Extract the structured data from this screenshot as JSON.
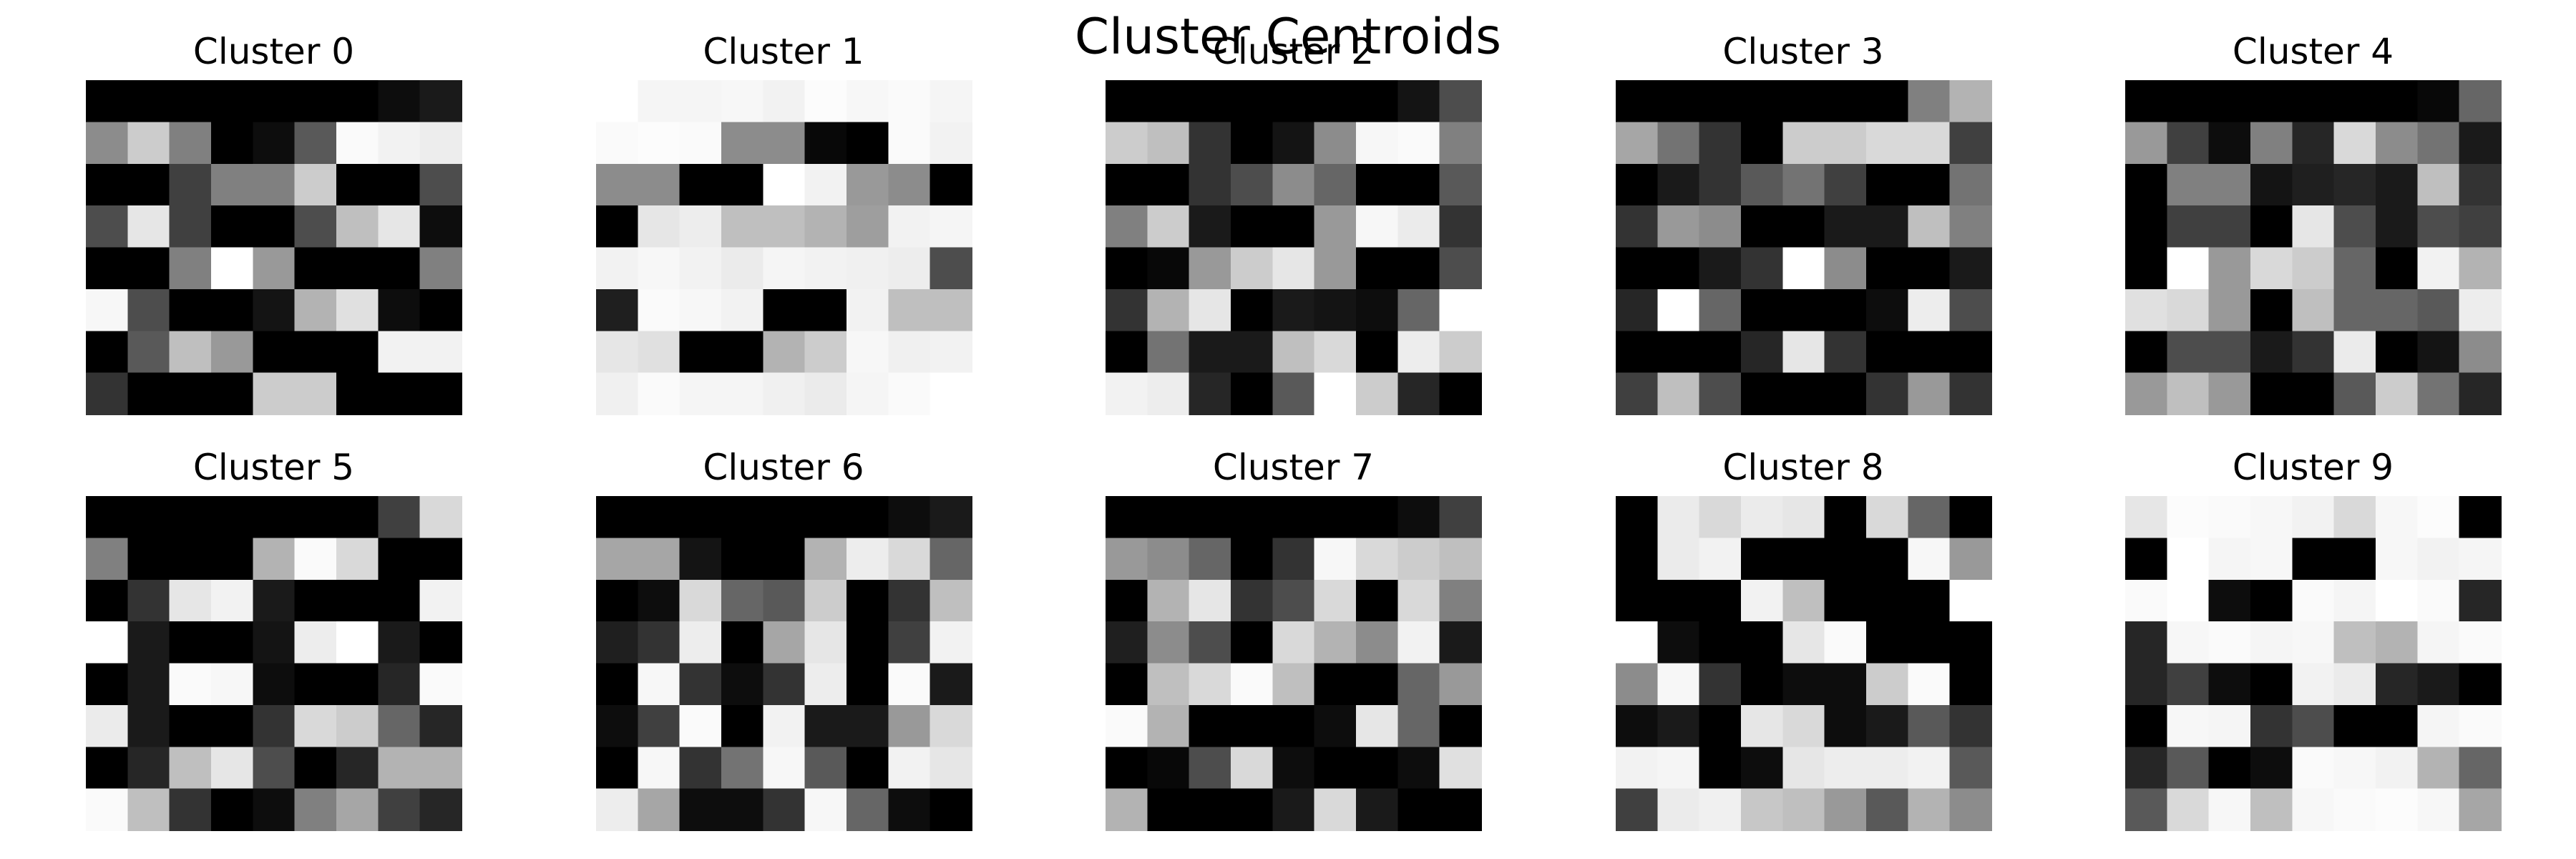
{
  "chart_data": {
    "type": "heatmap",
    "title": "Cluster Centroids",
    "colormap": "gray",
    "value_range": [
      0,
      1
    ],
    "axes_visible": false,
    "grid_rows": 8,
    "grid_cols": 9,
    "panels": [
      {
        "title": "Cluster 0",
        "values": [
          [
            0.0,
            0.0,
            0.0,
            0.0,
            0.0,
            0.0,
            0.0,
            0.05,
            0.1
          ],
          [
            0.55,
            0.8,
            0.5,
            0.0,
            0.05,
            0.35,
            0.98,
            0.95,
            0.93
          ],
          [
            0.0,
            0.0,
            0.25,
            0.5,
            0.5,
            0.8,
            0.0,
            0.0,
            0.3
          ],
          [
            0.3,
            0.9,
            0.25,
            0.0,
            0.0,
            0.3,
            0.75,
            0.9,
            0.05
          ],
          [
            0.0,
            0.0,
            0.5,
            1.0,
            0.6,
            0.0,
            0.0,
            0.0,
            0.5
          ],
          [
            0.97,
            0.3,
            0.0,
            0.0,
            0.08,
            0.7,
            0.88,
            0.05,
            0.0
          ],
          [
            0.0,
            0.35,
            0.75,
            0.6,
            0.0,
            0.0,
            0.0,
            0.95,
            0.95
          ],
          [
            0.2,
            0.0,
            0.0,
            0.0,
            0.8,
            0.8,
            0.0,
            0.0,
            0.0
          ]
        ]
      },
      {
        "title": "Cluster 1",
        "values": [
          [
            1.0,
            0.96,
            0.96,
            0.97,
            0.95,
            0.99,
            0.97,
            0.98,
            0.96
          ],
          [
            0.98,
            0.99,
            0.98,
            0.55,
            0.55,
            0.03,
            0.0,
            0.98,
            0.95
          ],
          [
            0.55,
            0.55,
            0.0,
            0.0,
            1.0,
            0.95,
            0.6,
            0.55,
            0.0
          ],
          [
            0.0,
            0.9,
            0.93,
            0.75,
            0.75,
            0.7,
            0.62,
            0.95,
            0.96
          ],
          [
            0.95,
            0.97,
            0.95,
            0.92,
            0.96,
            0.95,
            0.94,
            0.93,
            0.3
          ],
          [
            0.12,
            0.98,
            0.97,
            0.95,
            0.0,
            0.0,
            0.95,
            0.75,
            0.75
          ],
          [
            0.9,
            0.88,
            0.0,
            0.0,
            0.7,
            0.8,
            0.97,
            0.94,
            0.95
          ],
          [
            0.94,
            0.98,
            0.96,
            0.96,
            0.94,
            0.92,
            0.96,
            0.98,
            1.0
          ]
        ]
      },
      {
        "title": "Cluster 2",
        "values": [
          [
            0.0,
            0.0,
            0.0,
            0.0,
            0.0,
            0.0,
            0.0,
            0.08,
            0.3
          ],
          [
            0.8,
            0.75,
            0.2,
            0.0,
            0.08,
            0.55,
            0.97,
            0.98,
            0.5
          ],
          [
            0.0,
            0.0,
            0.2,
            0.3,
            0.55,
            0.4,
            0.0,
            0.0,
            0.35
          ],
          [
            0.5,
            0.8,
            0.1,
            0.0,
            0.0,
            0.6,
            0.97,
            0.92,
            0.2
          ],
          [
            0.0,
            0.03,
            0.6,
            0.8,
            0.9,
            0.6,
            0.0,
            0.0,
            0.3
          ],
          [
            0.2,
            0.7,
            0.9,
            0.0,
            0.1,
            0.08,
            0.05,
            0.4,
            1.0
          ],
          [
            0.0,
            0.45,
            0.1,
            0.1,
            0.75,
            0.85,
            0.0,
            0.93,
            0.8
          ],
          [
            0.95,
            0.93,
            0.15,
            0.0,
            0.35,
            1.0,
            0.8,
            0.15,
            0.0
          ]
        ]
      },
      {
        "title": "Cluster 3",
        "values": [
          [
            0.0,
            0.0,
            0.0,
            0.0,
            0.0,
            0.0,
            0.0,
            0.5,
            0.7
          ],
          [
            0.65,
            0.45,
            0.2,
            0.0,
            0.8,
            0.8,
            0.85,
            0.85,
            0.25
          ],
          [
            0.0,
            0.1,
            0.2,
            0.35,
            0.45,
            0.25,
            0.0,
            0.0,
            0.45
          ],
          [
            0.2,
            0.6,
            0.55,
            0.0,
            0.0,
            0.1,
            0.1,
            0.75,
            0.5
          ],
          [
            0.0,
            0.0,
            0.1,
            0.2,
            1.0,
            0.55,
            0.0,
            0.0,
            0.1
          ],
          [
            0.15,
            1.0,
            0.4,
            0.0,
            0.0,
            0.0,
            0.05,
            0.93,
            0.3
          ],
          [
            0.0,
            0.0,
            0.0,
            0.15,
            0.9,
            0.2,
            0.0,
            0.0,
            0.0
          ],
          [
            0.25,
            0.75,
            0.3,
            0.0,
            0.0,
            0.0,
            0.2,
            0.6,
            0.2
          ]
        ]
      },
      {
        "title": "Cluster 4",
        "values": [
          [
            0.0,
            0.0,
            0.0,
            0.0,
            0.0,
            0.0,
            0.0,
            0.03,
            0.4
          ],
          [
            0.6,
            0.25,
            0.05,
            0.5,
            0.15,
            0.85,
            0.55,
            0.45,
            0.1
          ],
          [
            0.0,
            0.5,
            0.5,
            0.08,
            0.12,
            0.15,
            0.1,
            0.75,
            0.2
          ],
          [
            0.0,
            0.25,
            0.25,
            0.0,
            0.9,
            0.3,
            0.1,
            0.3,
            0.25
          ],
          [
            0.0,
            1.0,
            0.6,
            0.85,
            0.8,
            0.4,
            0.0,
            0.95,
            0.7
          ],
          [
            0.88,
            0.85,
            0.6,
            0.0,
            0.75,
            0.4,
            0.4,
            0.35,
            0.93
          ],
          [
            0.0,
            0.3,
            0.3,
            0.1,
            0.2,
            0.92,
            0.0,
            0.08,
            0.55
          ],
          [
            0.6,
            0.75,
            0.6,
            0.0,
            0.0,
            0.35,
            0.8,
            0.45,
            0.15
          ]
        ]
      },
      {
        "title": "Cluster 5",
        "values": [
          [
            0.0,
            0.0,
            0.0,
            0.0,
            0.0,
            0.0,
            0.0,
            0.25,
            0.85
          ],
          [
            0.5,
            0.0,
            0.0,
            0.0,
            0.7,
            0.98,
            0.85,
            0.0,
            0.0
          ],
          [
            0.0,
            0.2,
            0.9,
            0.95,
            0.1,
            0.0,
            0.0,
            0.0,
            0.95
          ],
          [
            1.0,
            0.1,
            0.0,
            0.0,
            0.08,
            0.93,
            1.0,
            0.1,
            0.0
          ],
          [
            0.0,
            0.1,
            0.98,
            0.97,
            0.05,
            0.0,
            0.0,
            0.15,
            0.98
          ],
          [
            0.92,
            0.1,
            0.0,
            0.0,
            0.2,
            0.85,
            0.8,
            0.4,
            0.15
          ],
          [
            0.0,
            0.15,
            0.75,
            0.9,
            0.3,
            0.0,
            0.15,
            0.7,
            0.7
          ],
          [
            0.98,
            0.75,
            0.2,
            0.0,
            0.05,
            0.5,
            0.65,
            0.25,
            0.15
          ]
        ]
      },
      {
        "title": "Cluster 6",
        "values": [
          [
            0.0,
            0.0,
            0.0,
            0.0,
            0.0,
            0.0,
            0.0,
            0.05,
            0.1
          ],
          [
            0.65,
            0.65,
            0.08,
            0.0,
            0.0,
            0.7,
            0.93,
            0.85,
            0.4
          ],
          [
            0.0,
            0.05,
            0.85,
            0.4,
            0.35,
            0.8,
            0.0,
            0.2,
            0.75
          ],
          [
            0.12,
            0.2,
            0.93,
            0.0,
            0.65,
            0.9,
            0.0,
            0.25,
            0.95
          ],
          [
            0.0,
            0.97,
            0.2,
            0.05,
            0.2,
            0.93,
            0.0,
            0.98,
            0.1
          ],
          [
            0.05,
            0.25,
            0.98,
            0.0,
            0.95,
            0.1,
            0.1,
            0.6,
            0.85
          ],
          [
            0.0,
            0.97,
            0.2,
            0.45,
            0.97,
            0.35,
            0.0,
            0.95,
            0.9
          ],
          [
            0.93,
            0.65,
            0.05,
            0.05,
            0.2,
            0.97,
            0.4,
            0.05,
            0.0
          ]
        ]
      },
      {
        "title": "Cluster 7",
        "values": [
          [
            0.0,
            0.0,
            0.0,
            0.0,
            0.0,
            0.0,
            0.0,
            0.05,
            0.25
          ],
          [
            0.6,
            0.55,
            0.4,
            0.0,
            0.2,
            0.97,
            0.85,
            0.8,
            0.75
          ],
          [
            0.0,
            0.7,
            0.9,
            0.2,
            0.3,
            0.85,
            0.0,
            0.85,
            0.5
          ],
          [
            0.12,
            0.55,
            0.3,
            0.0,
            0.85,
            0.7,
            0.55,
            0.95,
            0.1
          ],
          [
            0.0,
            0.75,
            0.85,
            0.98,
            0.75,
            0.0,
            0.0,
            0.4,
            0.6
          ],
          [
            0.98,
            0.7,
            0.0,
            0.0,
            0.0,
            0.05,
            0.9,
            0.4,
            0.0
          ],
          [
            0.0,
            0.03,
            0.3,
            0.85,
            0.05,
            0.0,
            0.0,
            0.05,
            0.88
          ],
          [
            0.7,
            0.0,
            0.0,
            0.0,
            0.1,
            0.85,
            0.1,
            0.0,
            0.0
          ]
        ]
      },
      {
        "title": "Cluster 8",
        "values": [
          [
            0.0,
            0.92,
            0.85,
            0.92,
            0.9,
            0.0,
            0.85,
            0.4,
            0.0
          ],
          [
            0.0,
            0.92,
            0.95,
            0.0,
            0.0,
            0.0,
            0.0,
            0.97,
            0.6
          ],
          [
            0.0,
            0.0,
            0.0,
            0.95,
            0.75,
            0.0,
            0.0,
            0.0,
            1.0
          ],
          [
            1.0,
            0.05,
            0.0,
            0.0,
            0.9,
            0.98,
            0.0,
            0.0,
            0.0
          ],
          [
            0.55,
            0.97,
            0.2,
            0.0,
            0.05,
            0.05,
            0.8,
            0.98,
            0.0
          ],
          [
            0.05,
            0.1,
            0.0,
            0.9,
            0.85,
            0.05,
            0.1,
            0.35,
            0.2
          ],
          [
            0.95,
            0.96,
            0.0,
            0.05,
            0.9,
            0.93,
            0.93,
            0.95,
            0.35
          ],
          [
            0.25,
            0.92,
            0.94,
            0.78,
            0.75,
            0.6,
            0.35,
            0.7,
            0.55
          ]
        ]
      },
      {
        "title": "Cluster 9",
        "values": [
          [
            0.9,
            0.99,
            0.98,
            0.97,
            0.95,
            0.85,
            0.97,
            0.99,
            0.0
          ],
          [
            0.0,
            1.0,
            0.96,
            0.97,
            0.0,
            0.0,
            0.97,
            0.95,
            0.96
          ],
          [
            0.98,
            1.0,
            0.05,
            0.0,
            0.98,
            0.96,
            1.0,
            0.98,
            0.15
          ],
          [
            0.15,
            0.97,
            0.98,
            0.96,
            0.97,
            0.75,
            0.7,
            0.96,
            0.98
          ],
          [
            0.15,
            0.25,
            0.05,
            0.0,
            0.95,
            0.92,
            0.15,
            0.1,
            0.0
          ],
          [
            0.0,
            0.97,
            0.96,
            0.2,
            0.3,
            0.0,
            0.0,
            0.96,
            0.98
          ],
          [
            0.15,
            0.35,
            0.0,
            0.05,
            0.98,
            0.97,
            0.95,
            0.7,
            0.4
          ],
          [
            0.35,
            0.85,
            0.97,
            0.75,
            0.97,
            0.98,
            0.99,
            0.97,
            0.65
          ]
        ]
      }
    ]
  }
}
